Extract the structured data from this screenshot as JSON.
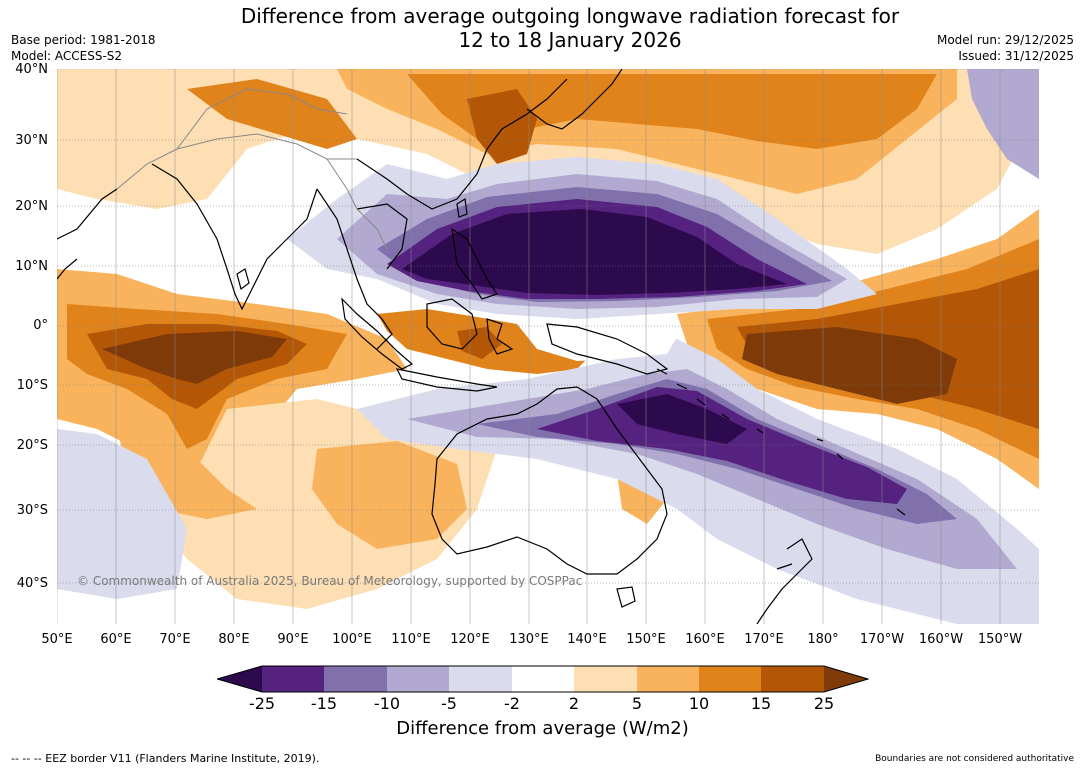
{
  "title": "Difference from average outgoing longwave radiation forecast for\n12 to 18 January 2026",
  "title_line1": "Difference from average outgoing longwave radiation forecast for",
  "title_line2": "12 to 18 January 2026",
  "base_period": "Base period: 1981-2018",
  "model": "Model: ACCESS-S2",
  "model_run": "Model run: 29/12/2025",
  "issued": "Issued: 31/12/2025",
  "copyright": "© Commonwealth of Australia 2025, Bureau of Meteorology, supported by COSPPac",
  "lat_labels": [
    "40°N",
    "30°N",
    "20°N",
    "10°N",
    "0°",
    "10°S",
    "20°S",
    "30°S",
    "40°S"
  ],
  "lon_labels": [
    "50°E",
    "60°E",
    "70°E",
    "80°E",
    "90°E",
    "100°E",
    "110°E",
    "120°E",
    "130°E",
    "140°E",
    "150°E",
    "160°E",
    "170°E",
    "180°",
    "170°W",
    "160°W",
    "150°W"
  ],
  "colorbar": {
    "label": "Difference from average (W/m2)",
    "ticks": [
      "-25",
      "-15",
      "-10",
      "-5",
      "-2",
      "2",
      "5",
      "10",
      "15",
      "25"
    ],
    "colors": {
      "lt_neg25": "#2d0a4e",
      "neg25_neg15": "#55227f",
      "neg15_neg10": "#8071ad",
      "neg10_neg5": "#b1a9d0",
      "neg5_neg2": "#dadbec",
      "neg2_2": "#ffffff",
      "p2_5": "#fddfb3",
      "p5_10": "#f9b35c",
      "p10_15": "#e1831b",
      "p15_25": "#b35706",
      "gt25": "#7f3a0a"
    }
  },
  "eez_legend": "--  --  -- EEZ border V11 (Flanders Marine Institute, 2019).",
  "boundaries_note": "Boundaries are not considered authoritative"
}
